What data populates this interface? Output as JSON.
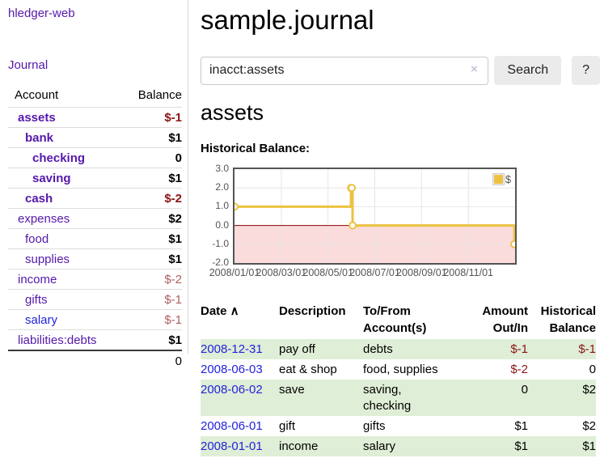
{
  "app": {
    "title": "hledger-web"
  },
  "sidebar": {
    "journal_link": "Journal",
    "table": {
      "headers": [
        "Account",
        "Balance"
      ],
      "rows": [
        {
          "account": "assets",
          "indent": 1,
          "bold": true,
          "balance": "$-1",
          "balance_class": "neg-strong"
        },
        {
          "account": "bank",
          "indent": 2,
          "bold": true,
          "balance": "$1",
          "balance_class": "pos"
        },
        {
          "account": "checking",
          "indent": 3,
          "bold": true,
          "balance": "0",
          "balance_class": "pos"
        },
        {
          "account": "saving",
          "indent": 3,
          "bold": true,
          "balance": "$1",
          "balance_class": "pos"
        },
        {
          "account": "cash",
          "indent": 2,
          "bold": true,
          "balance": "$-2",
          "balance_class": "neg-strong"
        },
        {
          "account": "expenses",
          "indent": 1,
          "bold": false,
          "balance": "$2",
          "balance_class": "pos"
        },
        {
          "account": "food",
          "indent": 2,
          "bold": false,
          "balance": "$1",
          "balance_class": "pos"
        },
        {
          "account": "supplies",
          "indent": 2,
          "bold": false,
          "balance": "$1",
          "balance_class": "pos"
        },
        {
          "account": "income",
          "indent": 1,
          "bold": false,
          "balance": "$-2",
          "balance_class": "neg-muted"
        },
        {
          "account": "gifts",
          "indent": 2,
          "bold": false,
          "balance": "$-1",
          "balance_class": "neg-muted"
        },
        {
          "account": "salary",
          "indent": 2,
          "bold": false,
          "balance": "$-1",
          "balance_class": "neg-muted",
          "unvisited": true
        },
        {
          "account": "liabilities:debts",
          "indent": 1,
          "bold": false,
          "balance": "$1",
          "balance_class": "pos"
        }
      ],
      "total": "0"
    }
  },
  "main": {
    "title": "sample.journal",
    "search": {
      "value": "inacct:assets",
      "clear_icon": "×",
      "search_button": "Search",
      "help_button": "?"
    },
    "account_heading": "assets",
    "chart_heading": "Historical Balance:",
    "register": {
      "columns": [
        {
          "line1": "Date",
          "line2": "",
          "sort": "∧",
          "align": "left"
        },
        {
          "line1": "Description",
          "line2": "",
          "align": "left"
        },
        {
          "line1": "To/From",
          "line2": "Account(s)",
          "align": "left"
        },
        {
          "line1": "Amount",
          "line2": "Out/In",
          "align": "right"
        },
        {
          "line1": "Historical",
          "line2": "Balance",
          "align": "right"
        }
      ],
      "rows": [
        {
          "date": "2008-12-31",
          "description": "pay off",
          "accounts": "debts",
          "amount": "$-1",
          "amount_class": "neg",
          "balance": "$-1",
          "balance_class": "neg"
        },
        {
          "date": "2008-06-03",
          "description": "eat & shop",
          "accounts": "food, supplies",
          "amount": "$-2",
          "amount_class": "neg",
          "balance": "0",
          "balance_class": "pos"
        },
        {
          "date": "2008-06-02",
          "description": "save",
          "accounts": "saving, checking",
          "amount": "0",
          "amount_class": "pos",
          "balance": "$2",
          "balance_class": "pos"
        },
        {
          "date": "2008-06-01",
          "description": "gift",
          "accounts": "gifts",
          "amount": "$1",
          "amount_class": "pos",
          "balance": "$2",
          "balance_class": "pos"
        },
        {
          "date": "2008-01-01",
          "description": "income",
          "accounts": "salary",
          "amount": "$1",
          "amount_class": "pos",
          "balance": "$1",
          "balance_class": "pos"
        }
      ]
    }
  },
  "chart_data": {
    "type": "line",
    "step": true,
    "title": "Historical Balance",
    "series": [
      {
        "name": "$",
        "color": "#edc240",
        "points": [
          [
            "2008-01-01",
            1
          ],
          [
            "2008-06-01",
            2
          ],
          [
            "2008-06-02",
            2
          ],
          [
            "2008-06-03",
            0
          ],
          [
            "2008-12-31",
            -1
          ]
        ]
      }
    ],
    "x_range": [
      "2008-01-01",
      "2009-01-01"
    ],
    "x_ticks": [
      "2008/01/01",
      "2008/03/01",
      "2008/05/01",
      "2008/07/01",
      "2008/09/01",
      "2008/11/01"
    ],
    "y_ticks": [
      3.0,
      2.0,
      1.0,
      0.0,
      -1.0,
      -2.0
    ],
    "ylim": [
      -2,
      3
    ],
    "legend": {
      "label": "$",
      "position": "top-right"
    },
    "colors": {
      "line": "#edc240",
      "marker_fill": "#ffffff",
      "negative_region": "#fbdcdc",
      "zero_line": "#8b0000",
      "grid": "#e6e6e6",
      "border": "#545454"
    }
  }
}
